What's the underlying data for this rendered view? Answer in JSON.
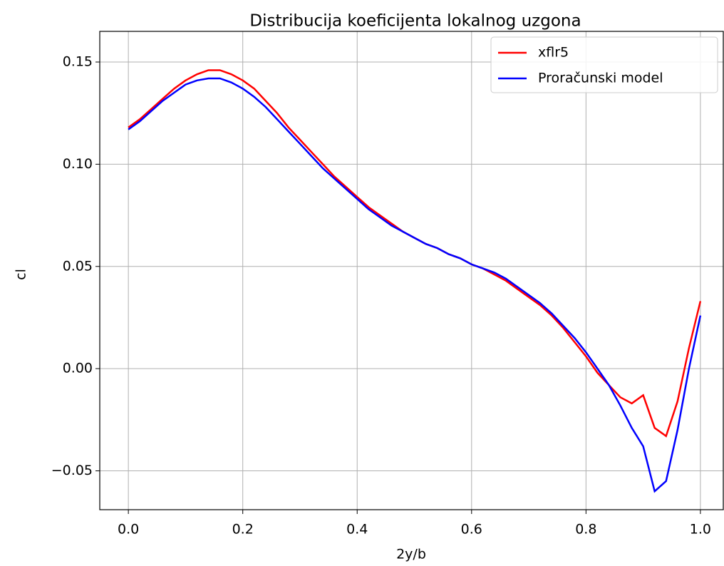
{
  "chart_data": {
    "type": "line",
    "title": "Distribucija koeficijenta lokalnog uzgona",
    "xlabel": "2y/b",
    "ylabel": "cl",
    "x": [
      0,
      0.02,
      0.04,
      0.06,
      0.08,
      0.1,
      0.12,
      0.14,
      0.16,
      0.18,
      0.2,
      0.22,
      0.24,
      0.26,
      0.28,
      0.3,
      0.32,
      0.34,
      0.36,
      0.38,
      0.4,
      0.42,
      0.44,
      0.46,
      0.48,
      0.5,
      0.52,
      0.54,
      0.56,
      0.58,
      0.6,
      0.62,
      0.64,
      0.66,
      0.68,
      0.7,
      0.72,
      0.74,
      0.76,
      0.78,
      0.8,
      0.82,
      0.84,
      0.86,
      0.88,
      0.9,
      0.92,
      0.94,
      0.96,
      0.98,
      1
    ],
    "series": [
      {
        "name": "xflr5",
        "color": "#ff0000",
        "values": [
          0.118,
          0.122,
          0.127,
          0.132,
          0.137,
          0.141,
          0.144,
          0.146,
          0.146,
          0.144,
          0.141,
          0.137,
          0.131,
          0.125,
          0.118,
          0.112,
          0.106,
          0.1,
          0.094,
          0.089,
          0.084,
          0.079,
          0.075,
          0.071,
          0.067,
          0.064,
          0.061,
          0.059,
          0.056,
          0.054,
          0.051,
          0.049,
          0.046,
          0.043,
          0.039,
          0.035,
          0.031,
          0.026,
          0.02,
          0.013,
          0.006,
          -0.002,
          -0.008,
          -0.014,
          -0.017,
          -0.013,
          -0.029,
          -0.033,
          -0.016,
          0.01,
          0.033
        ]
      },
      {
        "name": "Proračunski model",
        "color": "#0000ff",
        "values": [
          0.117,
          0.121,
          0.126,
          0.131,
          0.135,
          0.139,
          0.141,
          0.142,
          0.142,
          0.14,
          0.137,
          0.133,
          0.128,
          0.122,
          0.116,
          0.11,
          0.104,
          0.098,
          0.093,
          0.088,
          0.083,
          0.078,
          0.074,
          0.07,
          0.067,
          0.064,
          0.061,
          0.059,
          0.056,
          0.054,
          0.051,
          0.049,
          0.047,
          0.044,
          0.04,
          0.036,
          0.032,
          0.027,
          0.021,
          0.015,
          0.008,
          0,
          -0.008,
          -0.018,
          -0.029,
          -0.038,
          -0.06,
          -0.055,
          -0.03,
          0,
          0.026
        ]
      }
    ],
    "xlim": [
      -0.05,
      1.04
    ],
    "ylim": [
      -0.069,
      0.165
    ],
    "xticks": [
      {
        "value": 0,
        "label": "0.0"
      },
      0.2,
      0.4,
      0.6,
      0.8,
      {
        "value": 1,
        "label": "1.0"
      }
    ],
    "yticks": [
      {
        "value": -0.05,
        "label": "−0.05"
      },
      {
        "value": 0,
        "label": "0.00"
      },
      0.05,
      {
        "value": 0.1,
        "label": "0.10"
      },
      0.15
    ],
    "grid": true,
    "legend": "upper right"
  }
}
